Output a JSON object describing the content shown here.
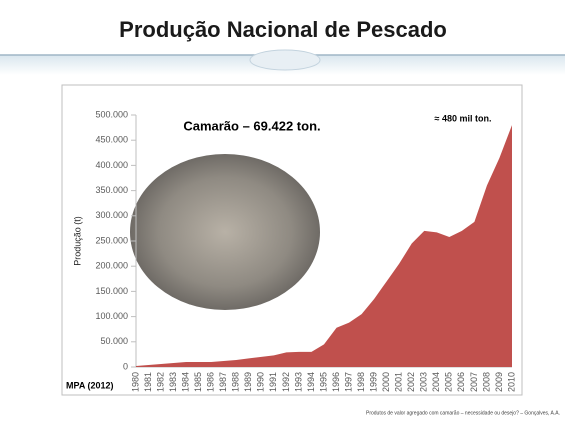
{
  "chart_data": {
    "type": "area",
    "title": "Produção Nacional de Pescado",
    "y_label": "Produção (t)",
    "annotations": [
      "Camarão – 69.422 ton.",
      "≈ 480 mil ton."
    ],
    "source": "MPA (2012)",
    "footer": "Produtos de valor agregado com camarão – necessidade ou desejo? – Gonçalves, A.A.",
    "categories": [
      "1980",
      "1981",
      "1982",
      "1983",
      "1984",
      "1985",
      "1986",
      "1987",
      "1988",
      "1989",
      "1990",
      "1991",
      "1992",
      "1993",
      "1994",
      "1995",
      "1996",
      "1997",
      "1998",
      "1999",
      "2000",
      "2001",
      "2002",
      "2003",
      "2004",
      "2005",
      "2006",
      "2007",
      "2008",
      "2009",
      "2010"
    ],
    "series": [
      {
        "color": "#c0504d",
        "values": [
          2000,
          4000,
          6000,
          8000,
          10000,
          10000,
          10000,
          12000,
          14000,
          17000,
          20000,
          23000,
          29000,
          30000,
          30000,
          45000,
          78000,
          88000,
          105000,
          135000,
          170000,
          205000,
          245000,
          270000,
          267000,
          258000,
          270000,
          288000,
          360000,
          415000,
          480000
        ]
      }
    ],
    "ylim": [
      0,
      500000
    ],
    "yticks": [
      0,
      {
        "value": 50000,
        "label": "50.000"
      },
      {
        "value": 100000,
        "label": "100.000"
      },
      {
        "value": 150000,
        "label": "150.000"
      },
      {
        "value": 200000,
        "label": "200.000"
      },
      {
        "value": 250000,
        "label": "250.000"
      },
      {
        "value": 300000,
        "label": "300.000"
      },
      {
        "value": 350000,
        "label": "350.000"
      },
      {
        "value": 400000,
        "label": "400.000"
      },
      {
        "value": 450000,
        "label": "450.000"
      },
      {
        "value": 500000,
        "label": "500.000"
      }
    ]
  }
}
